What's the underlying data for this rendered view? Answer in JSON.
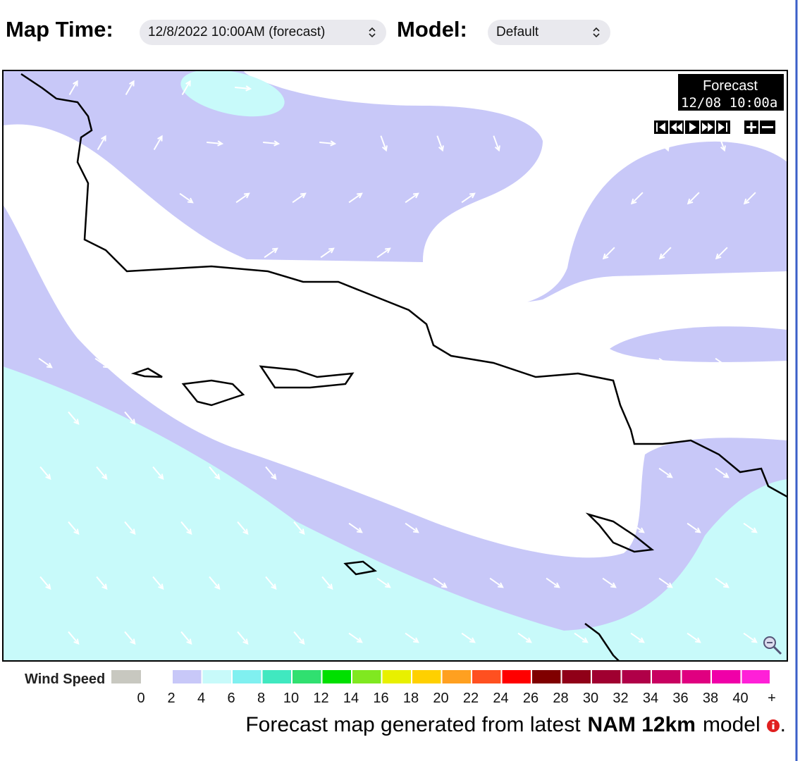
{
  "header": {
    "map_time_label": "Map Time:",
    "map_time_value": "12/8/2022 10:00AM (forecast)",
    "model_label": "Model:",
    "model_value": "Default"
  },
  "map": {
    "overlay_title": "Forecast",
    "overlay_time": "12/08 10:00a"
  },
  "legend": {
    "title": "Wind Speed",
    "zero_color": "#c8c8c0",
    "ticks": [
      0,
      2,
      4,
      6,
      8,
      10,
      12,
      14,
      16,
      18,
      20,
      22,
      24,
      26,
      28,
      30,
      32,
      34,
      36,
      38,
      40,
      "+"
    ],
    "colors": [
      "#c8c8f8",
      "#c8fafa",
      "#80f0f0",
      "#40e8c0",
      "#30e070",
      "#00e000",
      "#80e820",
      "#e8f000",
      "#ffd000",
      "#ffa020",
      "#ff5020",
      "#ff0000",
      "#800000",
      "#900018",
      "#a00030",
      "#b00048",
      "#c80060",
      "#e00080",
      "#f000a8",
      "#ff20d8"
    ]
  },
  "footer": {
    "text_before": "Forecast map generated from latest",
    "model": "NAM 12km",
    "text_after": "model",
    "end": "."
  }
}
